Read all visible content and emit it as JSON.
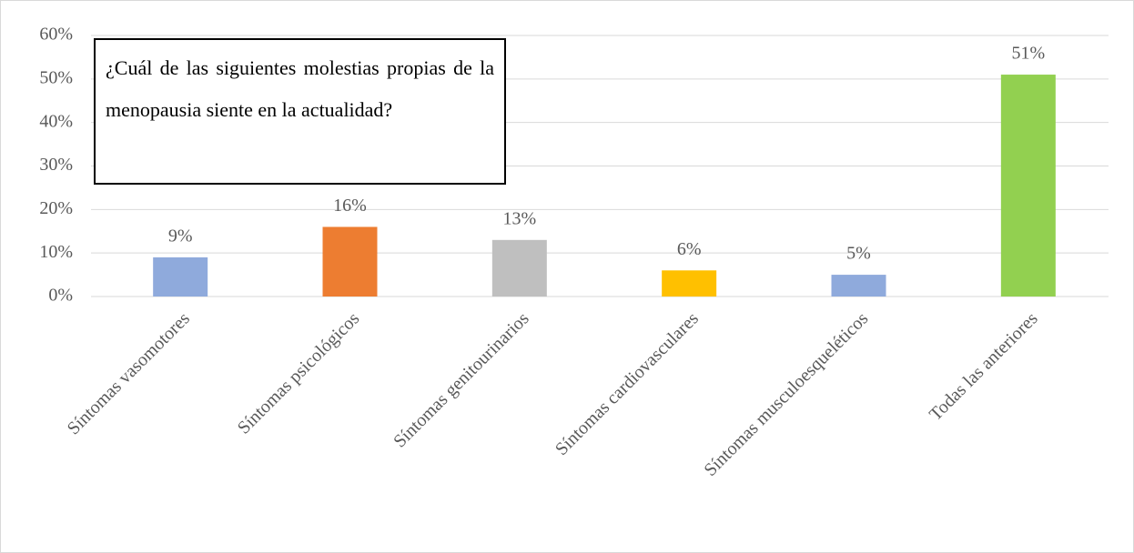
{
  "chart_data": {
    "type": "bar",
    "title": "¿Cuál de las siguientes molestias propias de la menopausia siente en la actualidad?",
    "categories": [
      "Síntomas vasomotores",
      "Síntomas psicológicos",
      "Síntomas genitourinarios",
      "Síntomas cardiovasculares",
      "Síntomas musculoesqueléticos",
      "Todas las anteriores"
    ],
    "values": [
      9,
      16,
      13,
      6,
      5,
      51
    ],
    "value_labels": [
      "9%",
      "16%",
      "13%",
      "6%",
      "5%",
      "51%"
    ],
    "colors": [
      "#8faadc",
      "#ed7d31",
      "#bfbfbf",
      "#ffc000",
      "#8faadc",
      "#92d050"
    ],
    "ylim": [
      0,
      60
    ],
    "yticks": [
      {
        "value": 0,
        "label": "0%"
      },
      {
        "value": 10,
        "label": "10%"
      },
      {
        "value": 20,
        "label": "20%"
      },
      {
        "value": 30,
        "label": "30%"
      },
      {
        "value": 40,
        "label": "40%"
      },
      {
        "value": 50,
        "label": "50%"
      },
      {
        "value": 60,
        "label": "60%"
      }
    ],
    "grid": true
  }
}
